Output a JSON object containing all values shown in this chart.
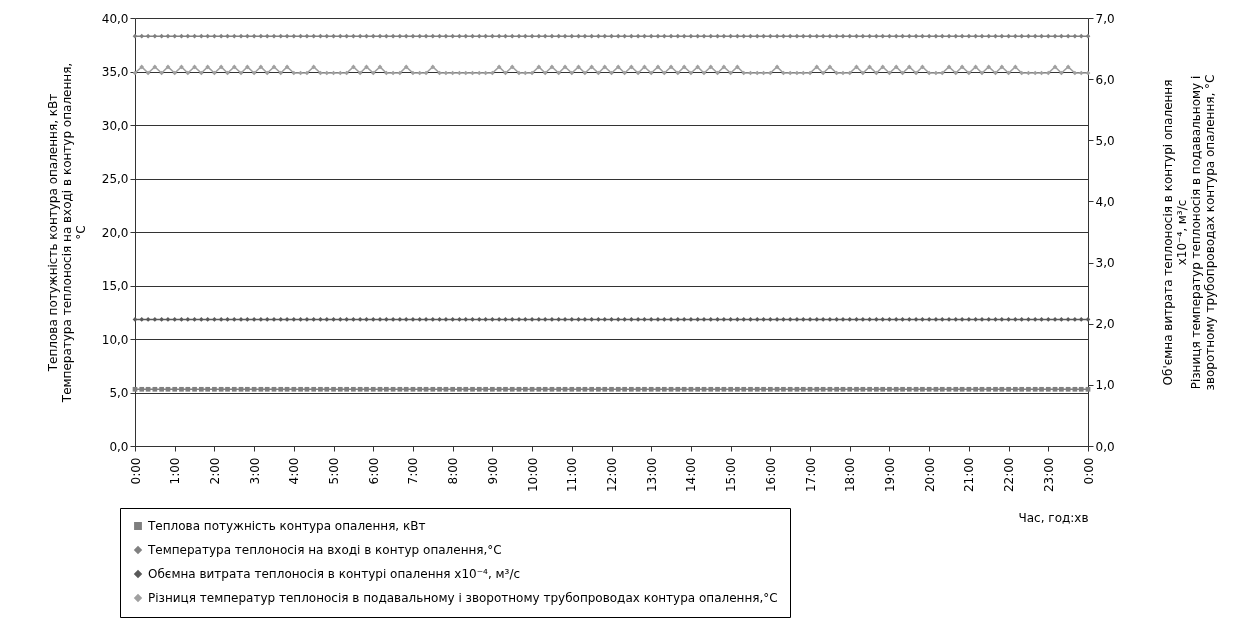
{
  "chart_data": {
    "type": "line",
    "marker": "diamond",
    "legend": "bottom",
    "grid": "y",
    "xlabel": "Час, год:хв",
    "ylabel": "Теплова потужність контура опалення, кВт\nТемпература теплоносія на вході в контур опалення,\n°С",
    "y2label": "Об'ємна витрата теплоносія в контурі опалення\nx10⁻⁴, м³/с\nРізниця температур теплоносія в подавальному і\nзворотному трубопроводах контура опалення, °С",
    "xlim": [
      0,
      24
    ],
    "xticks": [
      {
        "value": 0,
        "label": "0:00"
      },
      {
        "value": 1,
        "label": "1:00"
      },
      {
        "value": 2,
        "label": "2:00"
      },
      {
        "value": 3,
        "label": "3:00"
      },
      {
        "value": 4,
        "label": "4:00"
      },
      {
        "value": 5,
        "label": "5:00"
      },
      {
        "value": 6,
        "label": "6:00"
      },
      {
        "value": 7,
        "label": "7:00"
      },
      {
        "value": 8,
        "label": "8:00"
      },
      {
        "value": 9,
        "label": "9:00"
      },
      {
        "value": 10,
        "label": "10:00"
      },
      {
        "value": 11,
        "label": "11:00"
      },
      {
        "value": 12,
        "label": "12:00"
      },
      {
        "value": 13,
        "label": "13:00"
      },
      {
        "value": 14,
        "label": "14:00"
      },
      {
        "value": 15,
        "label": "15:00"
      },
      {
        "value": 16,
        "label": "16:00"
      },
      {
        "value": 17,
        "label": "17:00"
      },
      {
        "value": 18,
        "label": "18:00"
      },
      {
        "value": 19,
        "label": "19:00"
      },
      {
        "value": 20,
        "label": "20:00"
      },
      {
        "value": 21,
        "label": "21:00"
      },
      {
        "value": 22,
        "label": "22:00"
      },
      {
        "value": 23,
        "label": "23:00"
      },
      {
        "value": 24,
        "label": "0:00"
      }
    ],
    "ylim": [
      0,
      40
    ],
    "yticks": [
      {
        "value": 0,
        "label": "0,0"
      },
      {
        "value": 5,
        "label": "5,0"
      },
      {
        "value": 10,
        "label": "10,0"
      },
      {
        "value": 15,
        "label": "15,0"
      },
      {
        "value": 20,
        "label": "20,0"
      },
      {
        "value": 25,
        "label": "25,0"
      },
      {
        "value": 30,
        "label": "30,0"
      },
      {
        "value": 35,
        "label": "35,0"
      },
      {
        "value": 40,
        "label": "40,0"
      }
    ],
    "y2lim": [
      0,
      7
    ],
    "y2ticks": [
      {
        "value": 0,
        "label": "0,0"
      },
      {
        "value": 1,
        "label": "1,0"
      },
      {
        "value": 2,
        "label": "2,0"
      },
      {
        "value": 3,
        "label": "3,0"
      },
      {
        "value": 4,
        "label": "4,0"
      },
      {
        "value": 5,
        "label": "5,0"
      },
      {
        "value": 6,
        "label": "6,0"
      },
      {
        "value": 7,
        "label": "7,0"
      }
    ],
    "x": [
      0,
      0.17,
      0.33,
      0.5,
      0.67,
      0.83,
      1,
      1.17,
      1.33,
      1.5,
      1.67,
      1.83,
      2,
      2.17,
      2.33,
      2.5,
      2.67,
      2.83,
      3,
      3.17,
      3.33,
      3.5,
      3.67,
      3.83,
      4,
      4.17,
      4.33,
      4.5,
      4.67,
      4.83,
      5,
      5.17,
      5.33,
      5.5,
      5.67,
      5.83,
      6,
      6.17,
      6.33,
      6.5,
      6.67,
      6.83,
      7,
      7.17,
      7.33,
      7.5,
      7.67,
      7.83,
      8,
      8.17,
      8.33,
      8.5,
      8.67,
      8.83,
      9,
      9.17,
      9.33,
      9.5,
      9.67,
      9.83,
      10,
      10.17,
      10.33,
      10.5,
      10.67,
      10.83,
      11,
      11.17,
      11.33,
      11.5,
      11.67,
      11.83,
      12,
      12.17,
      12.33,
      12.5,
      12.67,
      12.83,
      13,
      13.17,
      13.33,
      13.5,
      13.67,
      13.83,
      14,
      14.17,
      14.33,
      14.5,
      14.67,
      14.83,
      15,
      15.17,
      15.33,
      15.5,
      15.67,
      15.83,
      16,
      16.17,
      16.33,
      16.5,
      16.67,
      16.83,
      17,
      17.17,
      17.33,
      17.5,
      17.67,
      17.83,
      18,
      18.17,
      18.33,
      18.5,
      18.67,
      18.83,
      19,
      19.17,
      19.33,
      19.5,
      19.67,
      19.83,
      20,
      20.17,
      20.33,
      20.5,
      20.67,
      20.83,
      21,
      21.17,
      21.33,
      21.5,
      21.67,
      21.83,
      22,
      22.17,
      22.33,
      22.5,
      22.67,
      22.83,
      23,
      23.17,
      23.33,
      23.5,
      23.67,
      23.83,
      24
    ],
    "series": [
      {
        "name": "Теплова потужність контура опалення, кВт",
        "color": "#7f7f7f",
        "marker": "square",
        "values": [
          5.3,
          5.3,
          5.3,
          5.3,
          5.3,
          5.3,
          5.3,
          5.3,
          5.3,
          5.3,
          5.3,
          5.3,
          5.3,
          5.3,
          5.3,
          5.3,
          5.3,
          5.3,
          5.3,
          5.3,
          5.3,
          5.3,
          5.3,
          5.3,
          5.3,
          5.3,
          5.3,
          5.3,
          5.3,
          5.3,
          5.3,
          5.3,
          5.3,
          5.3,
          5.3,
          5.3,
          5.3,
          5.3,
          5.3,
          5.3,
          5.3,
          5.3,
          5.3,
          5.3,
          5.3,
          5.3,
          5.3,
          5.3,
          5.3,
          5.3,
          5.3,
          5.3,
          5.3,
          5.3,
          5.3,
          5.3,
          5.3,
          5.3,
          5.3,
          5.3,
          5.3,
          5.3,
          5.3,
          5.3,
          5.3,
          5.3,
          5.3,
          5.3,
          5.3,
          5.3,
          5.3,
          5.3,
          5.3,
          5.3,
          5.3,
          5.3,
          5.3,
          5.3,
          5.3,
          5.3,
          5.3,
          5.3,
          5.3,
          5.3,
          5.3,
          5.3,
          5.3,
          5.3,
          5.3,
          5.3,
          5.3,
          5.3,
          5.3,
          5.3,
          5.3,
          5.3,
          5.3,
          5.3,
          5.3,
          5.3,
          5.3,
          5.3,
          5.3,
          5.3,
          5.3,
          5.3,
          5.3,
          5.3,
          5.3,
          5.3,
          5.3,
          5.3,
          5.3,
          5.3,
          5.3,
          5.3,
          5.3,
          5.3,
          5.3,
          5.3,
          5.3,
          5.3,
          5.3,
          5.3,
          5.3,
          5.3,
          5.3,
          5.3,
          5.3,
          5.3,
          5.3,
          5.3,
          5.3,
          5.3,
          5.3,
          5.3,
          5.3,
          5.3,
          5.3,
          5.3,
          5.3,
          5.3,
          5.3,
          5.3,
          5.3
        ]
      },
      {
        "name": "Температура теплоносія на вході в контур опалення,°С",
        "color": "#808080",
        "values": [
          38.3,
          38.3,
          38.3,
          38.3,
          38.3,
          38.3,
          38.3,
          38.3,
          38.3,
          38.3,
          38.3,
          38.3,
          38.3,
          38.3,
          38.3,
          38.3,
          38.3,
          38.3,
          38.3,
          38.3,
          38.3,
          38.3,
          38.3,
          38.3,
          38.3,
          38.3,
          38.3,
          38.3,
          38.3,
          38.3,
          38.3,
          38.3,
          38.3,
          38.3,
          38.3,
          38.3,
          38.3,
          38.3,
          38.3,
          38.3,
          38.3,
          38.3,
          38.3,
          38.3,
          38.3,
          38.3,
          38.3,
          38.3,
          38.3,
          38.3,
          38.3,
          38.3,
          38.3,
          38.3,
          38.3,
          38.3,
          38.3,
          38.3,
          38.3,
          38.3,
          38.3,
          38.3,
          38.3,
          38.3,
          38.3,
          38.3,
          38.3,
          38.3,
          38.3,
          38.3,
          38.3,
          38.3,
          38.3,
          38.3,
          38.3,
          38.3,
          38.3,
          38.3,
          38.3,
          38.3,
          38.3,
          38.3,
          38.3,
          38.3,
          38.3,
          38.3,
          38.3,
          38.3,
          38.3,
          38.3,
          38.3,
          38.3,
          38.3,
          38.3,
          38.3,
          38.3,
          38.3,
          38.3,
          38.3,
          38.3,
          38.3,
          38.3,
          38.3,
          38.3,
          38.3,
          38.3,
          38.3,
          38.3,
          38.3,
          38.3,
          38.3,
          38.3,
          38.3,
          38.3,
          38.3,
          38.3,
          38.3,
          38.3,
          38.3,
          38.3,
          38.3,
          38.3,
          38.3,
          38.3,
          38.3,
          38.3,
          38.3,
          38.3,
          38.3,
          38.3,
          38.3,
          38.3,
          38.3,
          38.3,
          38.3,
          38.3,
          38.3,
          38.3,
          38.3,
          38.3,
          38.3,
          38.3,
          38.3,
          38.3,
          38.3
        ]
      },
      {
        "name": "Обємна витрата теплоносія в контурі опалення x10⁻⁴, м³/с",
        "color": "#595959",
        "axis": "y2",
        "values": [
          2.07,
          2.07,
          2.07,
          2.07,
          2.07,
          2.07,
          2.07,
          2.07,
          2.07,
          2.07,
          2.07,
          2.07,
          2.07,
          2.07,
          2.07,
          2.07,
          2.07,
          2.07,
          2.07,
          2.07,
          2.07,
          2.07,
          2.07,
          2.07,
          2.07,
          2.07,
          2.07,
          2.07,
          2.07,
          2.07,
          2.07,
          2.07,
          2.07,
          2.07,
          2.07,
          2.07,
          2.07,
          2.07,
          2.07,
          2.07,
          2.07,
          2.07,
          2.07,
          2.07,
          2.07,
          2.07,
          2.07,
          2.07,
          2.07,
          2.07,
          2.07,
          2.07,
          2.07,
          2.07,
          2.07,
          2.07,
          2.07,
          2.07,
          2.07,
          2.07,
          2.07,
          2.07,
          2.07,
          2.07,
          2.07,
          2.07,
          2.07,
          2.07,
          2.07,
          2.07,
          2.07,
          2.07,
          2.07,
          2.07,
          2.07,
          2.07,
          2.07,
          2.07,
          2.07,
          2.07,
          2.07,
          2.07,
          2.07,
          2.07,
          2.07,
          2.07,
          2.07,
          2.07,
          2.07,
          2.07,
          2.07,
          2.07,
          2.07,
          2.07,
          2.07,
          2.07,
          2.07,
          2.07,
          2.07,
          2.07,
          2.07,
          2.07,
          2.07,
          2.07,
          2.07,
          2.07,
          2.07,
          2.07,
          2.07,
          2.07,
          2.07,
          2.07,
          2.07,
          2.07,
          2.07,
          2.07,
          2.07,
          2.07,
          2.07,
          2.07,
          2.07,
          2.07,
          2.07,
          2.07,
          2.07,
          2.07,
          2.07,
          2.07,
          2.07,
          2.07,
          2.07,
          2.07,
          2.07,
          2.07,
          2.07,
          2.07,
          2.07,
          2.07,
          2.07,
          2.07,
          2.07,
          2.07,
          2.07,
          2.07,
          2.07
        ]
      },
      {
        "name": "Різниця температур теплоносія в подавальному і зворотному трубопроводах контура опалення,°С",
        "color": "#a0a0a0",
        "axis": "y2",
        "values": [
          6.1,
          6.2,
          6.1,
          6.2,
          6.1,
          6.2,
          6.1,
          6.2,
          6.1,
          6.2,
          6.1,
          6.2,
          6.1,
          6.2,
          6.1,
          6.2,
          6.1,
          6.2,
          6.1,
          6.2,
          6.1,
          6.2,
          6.1,
          6.2,
          6.1,
          6.1,
          6.1,
          6.2,
          6.1,
          6.1,
          6.1,
          6.1,
          6.1,
          6.2,
          6.1,
          6.2,
          6.1,
          6.2,
          6.1,
          6.1,
          6.1,
          6.2,
          6.1,
          6.1,
          6.1,
          6.2,
          6.1,
          6.1,
          6.1,
          6.1,
          6.1,
          6.1,
          6.1,
          6.1,
          6.1,
          6.2,
          6.1,
          6.2,
          6.1,
          6.1,
          6.1,
          6.2,
          6.1,
          6.2,
          6.1,
          6.2,
          6.1,
          6.2,
          6.1,
          6.2,
          6.1,
          6.2,
          6.1,
          6.2,
          6.1,
          6.2,
          6.1,
          6.2,
          6.1,
          6.2,
          6.1,
          6.2,
          6.1,
          6.2,
          6.1,
          6.2,
          6.1,
          6.2,
          6.1,
          6.2,
          6.1,
          6.2,
          6.1,
          6.1,
          6.1,
          6.1,
          6.1,
          6.2,
          6.1,
          6.1,
          6.1,
          6.1,
          6.1,
          6.2,
          6.1,
          6.2,
          6.1,
          6.1,
          6.1,
          6.2,
          6.1,
          6.2,
          6.1,
          6.2,
          6.1,
          6.2,
          6.1,
          6.2,
          6.1,
          6.2,
          6.1,
          6.1,
          6.1,
          6.2,
          6.1,
          6.2,
          6.1,
          6.2,
          6.1,
          6.2,
          6.1,
          6.2,
          6.1,
          6.2,
          6.1,
          6.1,
          6.1,
          6.1,
          6.1,
          6.2,
          6.1,
          6.2,
          6.1,
          6.1,
          6.1
        ]
      }
    ]
  }
}
